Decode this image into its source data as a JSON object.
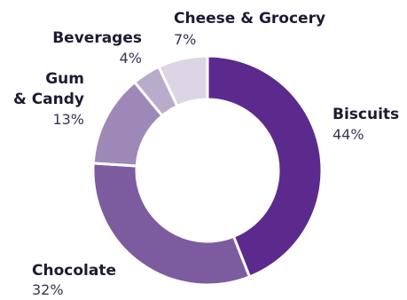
{
  "chart_data": {
    "type": "pie",
    "categories": [
      "Biscuits",
      "Chocolate",
      "Gum & Candy",
      "Beverages",
      "Cheese & Grocery"
    ],
    "values": [
      44,
      32,
      13,
      4,
      7
    ],
    "display_values": [
      "44%",
      "32%",
      "13%",
      "4%",
      "7%"
    ],
    "label_lines": [
      [
        "Biscuits"
      ],
      [
        "Chocolate"
      ],
      [
        "Gum",
        "& Candy"
      ],
      [
        "Beverages"
      ],
      [
        "Cheese & Grocery"
      ]
    ],
    "colors": [
      "#5c2a8c",
      "#7c5c9e",
      "#9e88b8",
      "#b9abcb",
      "#dcd5e5"
    ],
    "style": "donut"
  }
}
